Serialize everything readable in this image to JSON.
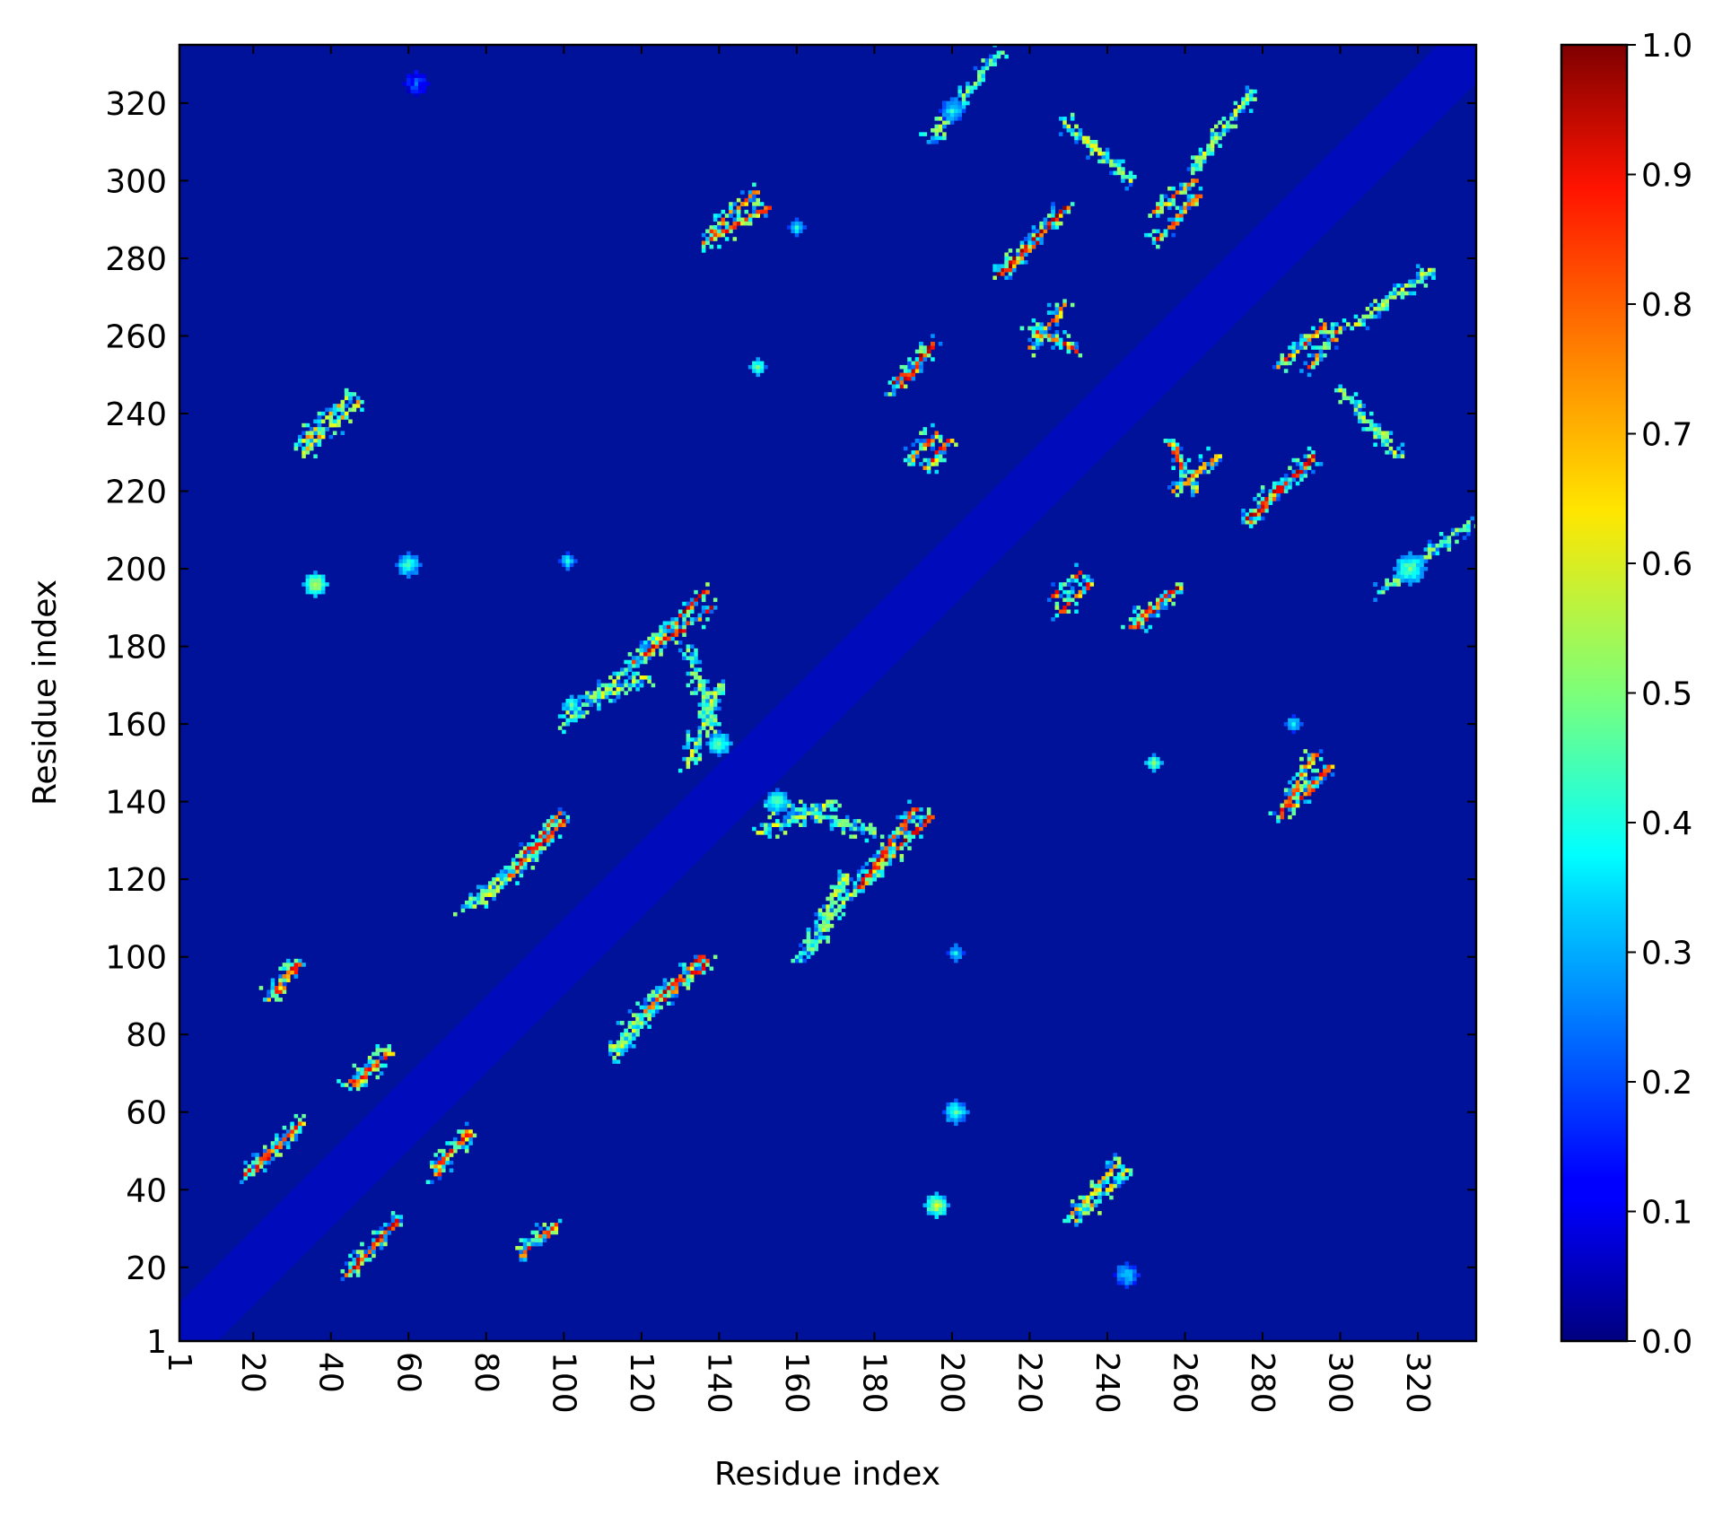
{
  "chart_data": {
    "type": "heatmap",
    "title": "",
    "xlabel": "Residue index",
    "ylabel": "Residue index",
    "n_residues": 335,
    "xlim": [
      1,
      335
    ],
    "ylim": [
      1,
      335
    ],
    "x_ticks": [
      1,
      20,
      40,
      60,
      80,
      100,
      120,
      140,
      160,
      180,
      200,
      220,
      240,
      260,
      280,
      300,
      320
    ],
    "y_ticks": [
      1,
      20,
      40,
      60,
      80,
      100,
      120,
      140,
      160,
      180,
      200,
      220,
      240,
      260,
      280,
      300,
      320
    ],
    "x_tick_rotation": "vertical (90° clockwise)",
    "colormap": "jet",
    "vmin": 0.0,
    "vmax": 1.0,
    "colorbar_ticks": [
      "0.0",
      "0.1",
      "0.2",
      "0.3",
      "0.4",
      "0.5",
      "0.6",
      "0.7",
      "0.8",
      "0.9",
      "1.0"
    ],
    "colorbar_position": "right",
    "background_value": 0.05,
    "contact_segments": [
      {
        "x1": 20,
        "y1": 45,
        "x2": 32,
        "y2": 57,
        "v": 0.95
      },
      {
        "x1": 25,
        "y1": 90,
        "x2": 31,
        "y2": 98,
        "v": 0.9
      },
      {
        "x1": 44,
        "y1": 18,
        "x2": 57,
        "y2": 32,
        "v": 0.9
      },
      {
        "x1": 44,
        "y1": 67,
        "x2": 55,
        "y2": 75,
        "v": 0.85
      },
      {
        "x1": 67,
        "y1": 46,
        "x2": 75,
        "y2": 54,
        "v": 0.85
      },
      {
        "x1": 89,
        "y1": 23,
        "x2": 97,
        "y2": 30,
        "v": 0.85
      },
      {
        "x1": 86,
        "y1": 122,
        "x2": 99,
        "y2": 137,
        "v": 0.9
      },
      {
        "x1": 74,
        "y1": 113,
        "x2": 89,
        "y2": 124,
        "v": 0.6
      },
      {
        "x1": 113,
        "y1": 77,
        "x2": 126,
        "y2": 92,
        "v": 0.6
      },
      {
        "x1": 121,
        "y1": 86,
        "x2": 135,
        "y2": 100,
        "v": 0.9
      },
      {
        "x1": 119,
        "y1": 177,
        "x2": 136,
        "y2": 194,
        "v": 0.95
      },
      {
        "x1": 101,
        "y1": 163,
        "x2": 121,
        "y2": 172,
        "v": 0.6
      },
      {
        "x1": 132,
        "y1": 150,
        "x2": 140,
        "y2": 170,
        "v": 0.6
      },
      {
        "x1": 138,
        "y1": 287,
        "x2": 149,
        "y2": 297,
        "v": 0.85
      },
      {
        "x1": 168,
        "y1": 110,
        "x2": 182,
        "y2": 124,
        "v": 0.6
      },
      {
        "x1": 176,
        "y1": 118,
        "x2": 190,
        "y2": 138,
        "v": 0.9
      },
      {
        "x1": 160,
        "y1": 100,
        "x2": 168,
        "y2": 108,
        "v": 0.55
      },
      {
        "x1": 153,
        "y1": 140,
        "x2": 180,
        "y2": 132,
        "v": 0.55
      },
      {
        "x1": 185,
        "y1": 248,
        "x2": 195,
        "y2": 258,
        "v": 0.95
      },
      {
        "x1": 189,
        "y1": 228,
        "x2": 196,
        "y2": 235,
        "v": 0.85
      },
      {
        "x1": 212,
        "y1": 276,
        "x2": 228,
        "y2": 292,
        "v": 0.95
      },
      {
        "x1": 220,
        "y1": 262,
        "x2": 232,
        "y2": 256,
        "v": 0.85
      },
      {
        "x1": 226,
        "y1": 193,
        "x2": 233,
        "y2": 199,
        "v": 0.85
      },
      {
        "x1": 246,
        "y1": 185,
        "x2": 256,
        "y2": 194,
        "v": 0.9
      },
      {
        "x1": 257,
        "y1": 220,
        "x2": 268,
        "y2": 229,
        "v": 0.8
      },
      {
        "x1": 276,
        "y1": 213,
        "x2": 293,
        "y2": 229,
        "v": 0.95
      },
      {
        "x1": 284,
        "y1": 136,
        "x2": 293,
        "y2": 152,
        "v": 0.85
      },
      {
        "x1": 284,
        "y1": 252,
        "x2": 296,
        "y2": 263,
        "v": 0.85
      },
      {
        "x1": 252,
        "y1": 292,
        "x2": 262,
        "y2": 300,
        "v": 0.8
      },
      {
        "x1": 229,
        "y1": 315,
        "x2": 246,
        "y2": 300,
        "v": 0.6
      },
      {
        "x1": 262,
        "y1": 303,
        "x2": 277,
        "y2": 323,
        "v": 0.6
      },
      {
        "x1": 194,
        "y1": 310,
        "x2": 212,
        "y2": 333,
        "v": 0.55
      },
      {
        "x1": 32,
        "y1": 232,
        "x2": 45,
        "y2": 245,
        "v": 0.7
      },
      {
        "x1": 230,
        "y1": 33,
        "x2": 243,
        "y2": 47,
        "v": 0.7
      }
    ],
    "contact_blobs": [
      {
        "x": 60,
        "y": 201,
        "r": 3,
        "v": 0.45
      },
      {
        "x": 101,
        "y": 202,
        "r": 2,
        "v": 0.4
      },
      {
        "x": 201,
        "y": 60,
        "r": 3,
        "v": 0.45
      },
      {
        "x": 201,
        "y": 101,
        "r": 2,
        "v": 0.4
      },
      {
        "x": 160,
        "y": 288,
        "r": 2,
        "v": 0.4
      },
      {
        "x": 288,
        "y": 160,
        "r": 2,
        "v": 0.4
      },
      {
        "x": 140,
        "y": 155,
        "r": 3,
        "v": 0.5
      },
      {
        "x": 155,
        "y": 140,
        "r": 3,
        "v": 0.5
      },
      {
        "x": 102,
        "y": 165,
        "r": 2,
        "v": 0.5
      },
      {
        "x": 36,
        "y": 196,
        "r": 3,
        "v": 0.6
      },
      {
        "x": 196,
        "y": 36,
        "r": 3,
        "v": 0.6
      },
      {
        "x": 252,
        "y": 150,
        "r": 2,
        "v": 0.55
      },
      {
        "x": 150,
        "y": 252,
        "r": 2,
        "v": 0.55
      },
      {
        "x": 318,
        "y": 200,
        "r": 4,
        "v": 0.5
      },
      {
        "x": 200,
        "y": 318,
        "r": 3,
        "v": 0.4
      },
      {
        "x": 245,
        "y": 18,
        "r": 3,
        "v": 0.35
      },
      {
        "x": 62,
        "y": 325,
        "r": 3,
        "v": 0.2
      }
    ]
  }
}
